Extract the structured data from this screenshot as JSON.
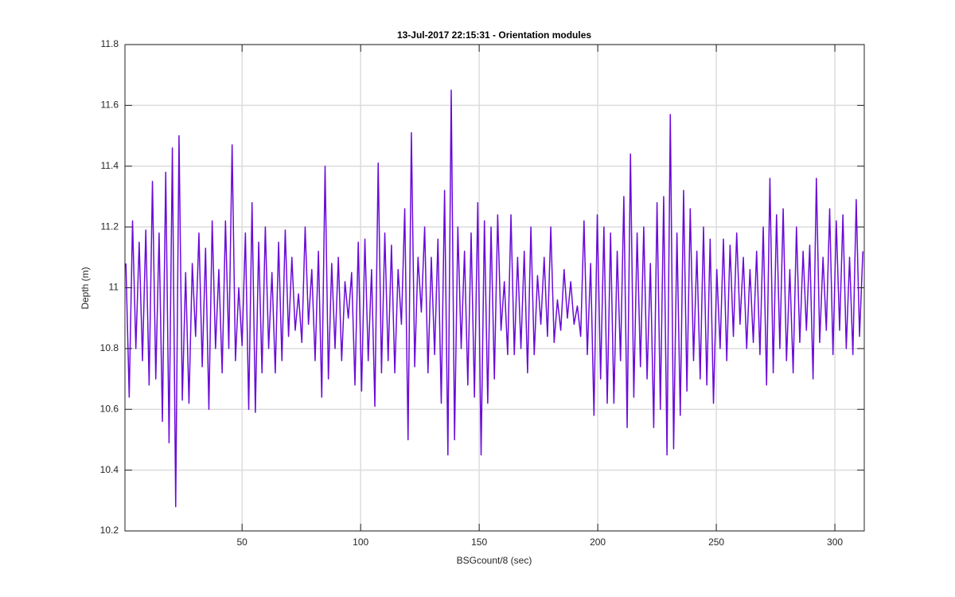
{
  "chart_data": {
    "type": "line",
    "title": "13-Jul-2017 22:15:31 - Orientation modules",
    "xlabel": "BSGcount/8 (sec)",
    "ylabel": "Depth (m)",
    "xlim": [
      0.6,
      312.4
    ],
    "ylim": [
      10.2,
      11.8
    ],
    "xticks": [
      50,
      100,
      150,
      200,
      250,
      300
    ],
    "yticks": [
      10.2,
      10.4,
      10.6,
      10.8,
      11,
      11.2,
      11.4,
      11.6,
      11.8
    ],
    "grid": true,
    "x": [
      1,
      2.4,
      3.8,
      5.2,
      6.6,
      8,
      9.4,
      10.8,
      12.2,
      13.6,
      15,
      16.4,
      17.8,
      19.2,
      20.6,
      22,
      23.4,
      24.8,
      26.2,
      27.6,
      29,
      30.4,
      31.8,
      33.2,
      34.6,
      36,
      37.4,
      38.8,
      40.2,
      41.6,
      43,
      44.4,
      45.8,
      47.2,
      48.6,
      50,
      51.4,
      52.8,
      54.2,
      55.6,
      57,
      58.4,
      59.8,
      61.2,
      62.6,
      64,
      65.4,
      66.8,
      68.2,
      69.6,
      71,
      72.4,
      73.8,
      75.2,
      76.6,
      78,
      79.4,
      80.8,
      82.2,
      83.6,
      85,
      86.4,
      87.8,
      89.2,
      90.6,
      92,
      93.4,
      94.8,
      96.2,
      97.6,
      99,
      100.4,
      101.8,
      103.2,
      104.6,
      106,
      107.4,
      108.8,
      110.2,
      111.6,
      113,
      114.4,
      115.8,
      117.2,
      118.6,
      120,
      121.4,
      122.8,
      124.2,
      125.6,
      127,
      128.4,
      129.8,
      131.2,
      132.6,
      134,
      135.4,
      136.8,
      138.2,
      139.6,
      141,
      142.4,
      143.8,
      145.2,
      146.6,
      148,
      149.4,
      150.8,
      152.2,
      153.6,
      155,
      156.4,
      157.8,
      159.2,
      160.6,
      162,
      163.4,
      164.8,
      166.2,
      167.6,
      169,
      170.4,
      171.8,
      173.2,
      174.6,
      176,
      177.4,
      178.8,
      180.2,
      181.6,
      183,
      184.4,
      185.8,
      187.2,
      188.6,
      190,
      191.4,
      192.8,
      194.2,
      195.6,
      197,
      198.4,
      199.8,
      201.2,
      202.6,
      204,
      205.4,
      206.8,
      208.2,
      209.6,
      211,
      212.4,
      213.8,
      215.2,
      216.6,
      218,
      219.4,
      220.8,
      222.2,
      223.6,
      225,
      226.4,
      227.8,
      229.2,
      230.6,
      232,
      233.4,
      234.8,
      236.2,
      237.6,
      239,
      240.4,
      241.8,
      243.2,
      244.6,
      246,
      247.4,
      248.8,
      250.2,
      251.6,
      253,
      254.4,
      255.8,
      257.2,
      258.6,
      260,
      261.4,
      262.8,
      264.2,
      265.6,
      267,
      268.4,
      269.8,
      271.2,
      272.6,
      274,
      275.4,
      276.8,
      278.2,
      279.6,
      281,
      282.4,
      283.8,
      285.2,
      286.6,
      288,
      289.4,
      290.8,
      292.2,
      293.6,
      295,
      296.4,
      297.8,
      299.2,
      300.6,
      302,
      303.4,
      304.8,
      306.2,
      307.6,
      309,
      310.4,
      311.8
    ],
    "series": [
      {
        "color": "#6a0ad8",
        "values": [
          11.08,
          10.64,
          11.22,
          10.8,
          11.15,
          10.76,
          11.19,
          10.68,
          11.35,
          10.7,
          11.18,
          10.56,
          11.38,
          10.49,
          11.46,
          10.28,
          11.5,
          10.63,
          11.05,
          10.62,
          11.08,
          10.84,
          11.18,
          10.74,
          11.13,
          10.6,
          11.22,
          10.8,
          11.06,
          10.72,
          11.22,
          10.8,
          11.47,
          10.76,
          11.0,
          10.81,
          11.18,
          10.6,
          11.28,
          10.59,
          11.15,
          10.72,
          11.2,
          10.8,
          11.05,
          10.72,
          11.15,
          10.76,
          11.19,
          10.84,
          11.1,
          10.86,
          10.98,
          10.82,
          11.2,
          10.88,
          11.06,
          10.76,
          11.12,
          10.64,
          11.4,
          10.7,
          11.08,
          10.8,
          11.1,
          10.76,
          11.02,
          10.9,
          11.05,
          10.68,
          11.15,
          10.66,
          11.16,
          10.76,
          11.06,
          10.61,
          11.41,
          10.72,
          11.18,
          10.76,
          11.14,
          10.72,
          11.06,
          10.88,
          11.26,
          10.5,
          11.51,
          10.74,
          11.1,
          10.92,
          11.2,
          10.72,
          11.1,
          10.78,
          11.16,
          10.62,
          11.32,
          10.45,
          11.65,
          10.5,
          11.2,
          10.8,
          11.12,
          10.68,
          11.18,
          10.64,
          11.28,
          10.45,
          11.22,
          10.62,
          11.2,
          10.7,
          11.24,
          10.86,
          11.02,
          10.78,
          11.24,
          10.78,
          11.1,
          10.8,
          11.12,
          10.72,
          11.2,
          10.78,
          11.04,
          10.88,
          11.1,
          10.84,
          11.2,
          10.82,
          10.96,
          10.86,
          11.06,
          10.9,
          11.02,
          10.88,
          10.94,
          10.84,
          11.22,
          10.78,
          11.08,
          10.58,
          11.24,
          10.7,
          11.2,
          10.62,
          11.18,
          10.62,
          11.12,
          10.76,
          11.3,
          10.54,
          11.44,
          10.64,
          11.18,
          10.74,
          11.2,
          10.7,
          11.08,
          10.54,
          11.28,
          10.6,
          11.3,
          10.45,
          11.57,
          10.47,
          11.18,
          10.58,
          11.32,
          10.66,
          11.26,
          10.76,
          11.12,
          10.7,
          11.2,
          10.68,
          11.16,
          10.62,
          11.06,
          10.8,
          11.16,
          10.76,
          11.14,
          10.84,
          11.18,
          10.88,
          11.1,
          10.8,
          11.06,
          10.82,
          11.12,
          10.78,
          11.2,
          10.68,
          11.36,
          10.72,
          11.24,
          10.8,
          11.26,
          10.76,
          11.06,
          10.72,
          11.2,
          10.82,
          11.12,
          10.86,
          11.14,
          10.7,
          11.36,
          10.82,
          11.1,
          10.86,
          11.26,
          10.78,
          11.22,
          10.86,
          11.24,
          10.8,
          11.1,
          10.78,
          11.29,
          10.84,
          11.12
        ]
      }
    ]
  }
}
